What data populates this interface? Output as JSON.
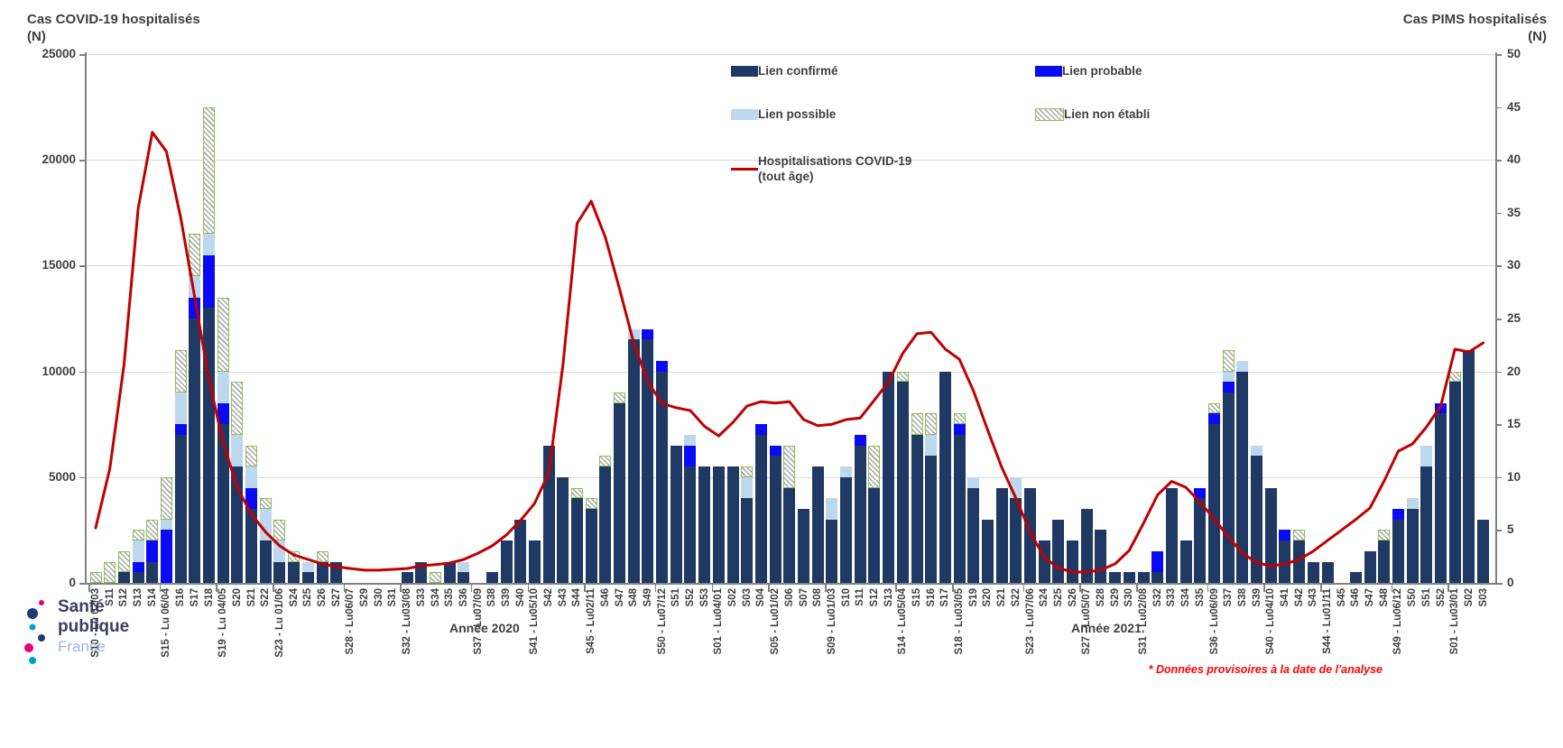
{
  "axes": {
    "left_title1": "Cas COVID-19 hospitalisés",
    "left_title2": "(N)",
    "right_title1": "Cas PIMS hospitalisés",
    "right_title2": "(N)"
  },
  "legend": {
    "confirmed": "Lien confirmé",
    "probable": "Lien probable",
    "possible": "Lien possible",
    "non_etabli": "Lien non établi",
    "covid_line1": "Hospitalisations COVID-19",
    "covid_line2": "(tout âge)"
  },
  "footer": {
    "year_2020": "Année 2020",
    "year_2021": "Année 2021",
    "provisional_note": "* Données provisoires à la date de l'analyse"
  },
  "logo": {
    "line1": "Santé",
    "line2": "publique",
    "line3": "France"
  },
  "colors": {
    "confirmed": "#1f3864",
    "probable": "#0a0af5",
    "possible": "#bdd7ee",
    "non_etabli_border": "#8cc04b",
    "covid_line": "#c00000",
    "gridline": "#d9d9d9",
    "axis": "#808080",
    "text": "#3f3f3f",
    "note": "#ff0000"
  },
  "chart_data": {
    "type": "bar",
    "subtype": "stacked-bars-with-line-combo",
    "title": "",
    "xlabel": "",
    "ylabel_left": "Cas COVID-19 hospitalisés (N)",
    "ylabel_right": "Cas PIMS hospitalisés (N)",
    "left_axis": {
      "min": 0,
      "max": 25000,
      "step": 5000,
      "applies_to": "covid_hosp line"
    },
    "right_axis": {
      "min": 0,
      "max": 50,
      "step": 5,
      "applies_to": "stacked PIMS bars"
    },
    "grid": "horizontal, every 5000 (left) / 10 (right)",
    "legend_position": "top-center",
    "series_names": [
      "Lien confirmé",
      "Lien probable",
      "Lien possible",
      "Lien non établi",
      "Hospitalisations COVID-19 (tout âge)"
    ],
    "weeks": [
      {
        "label": "S10 - Lu 02/03",
        "confirmed": 0,
        "probable": 0,
        "possible": 0,
        "non_etabli": 1,
        "covid_hosp": 2600
      },
      {
        "label": "S11",
        "confirmed": 0,
        "probable": 0,
        "possible": 0,
        "non_etabli": 2,
        "covid_hosp": 5400
      },
      {
        "label": "S12",
        "confirmed": 1,
        "probable": 0,
        "possible": 0,
        "non_etabli": 2,
        "covid_hosp": 10300
      },
      {
        "label": "S13",
        "confirmed": 1,
        "probable": 1,
        "possible": 2,
        "non_etabli": 1,
        "covid_hosp": 17700
      },
      {
        "label": "S14",
        "confirmed": 2,
        "probable": 2,
        "possible": 0,
        "non_etabli": 2,
        "covid_hosp": 21300
      },
      {
        "label": "S15 - Lu 06/04",
        "confirmed": 0,
        "probable": 5,
        "possible": 1,
        "non_etabli": 4,
        "covid_hosp": 20400
      },
      {
        "label": "S16",
        "confirmed": 14,
        "probable": 1,
        "possible": 3,
        "non_etabli": 4,
        "covid_hosp": 17300
      },
      {
        "label": "S17",
        "confirmed": 25,
        "probable": 2,
        "possible": 2,
        "non_etabli": 4,
        "covid_hosp": 13500
      },
      {
        "label": "S18",
        "confirmed": 26,
        "probable": 5,
        "possible": 2,
        "non_etabli": 12,
        "covid_hosp": 9600
      },
      {
        "label": "S19 - Lu 04/05",
        "confirmed": 15,
        "probable": 2,
        "possible": 3,
        "non_etabli": 7,
        "covid_hosp": 6650
      },
      {
        "label": "S20",
        "confirmed": 11,
        "probable": 0,
        "possible": 3,
        "non_etabli": 5,
        "covid_hosp": 4500
      },
      {
        "label": "S21",
        "confirmed": 7,
        "probable": 2,
        "possible": 2,
        "non_etabli": 2,
        "covid_hosp": 3250
      },
      {
        "label": "S22",
        "confirmed": 4,
        "probable": 0,
        "possible": 3,
        "non_etabli": 1,
        "covid_hosp": 2400
      },
      {
        "label": "S23 - Lu 01/06",
        "confirmed": 2,
        "probable": 0,
        "possible": 2,
        "non_etabli": 2,
        "covid_hosp": 1750
      },
      {
        "label": "S24",
        "confirmed": 2,
        "probable": 0,
        "possible": 0,
        "non_etabli": 1,
        "covid_hosp": 1320
      },
      {
        "label": "S25",
        "confirmed": 1,
        "probable": 0,
        "possible": 1,
        "non_etabli": 0,
        "covid_hosp": 1110
      },
      {
        "label": "S26",
        "confirmed": 2,
        "probable": 0,
        "possible": 0,
        "non_etabli": 1,
        "covid_hosp": 900
      },
      {
        "label": "S27",
        "confirmed": 2,
        "probable": 0,
        "possible": 0,
        "non_etabli": 0,
        "covid_hosp": 770
      },
      {
        "label": "S28 - Lu06/07",
        "confirmed": 0,
        "probable": 0,
        "possible": 0,
        "non_etabli": 0,
        "covid_hosp": 680
      },
      {
        "label": "S29",
        "confirmed": 0,
        "probable": 0,
        "possible": 0,
        "non_etabli": 0,
        "covid_hosp": 600
      },
      {
        "label": "S30",
        "confirmed": 0,
        "probable": 0,
        "possible": 0,
        "non_etabli": 0,
        "covid_hosp": 600
      },
      {
        "label": "S31",
        "confirmed": 0,
        "probable": 0,
        "possible": 0,
        "non_etabli": 0,
        "covid_hosp": 640
      },
      {
        "label": "S32 - Lu03/08",
        "confirmed": 1,
        "probable": 0,
        "possible": 0,
        "non_etabli": 0,
        "covid_hosp": 680
      },
      {
        "label": "S33",
        "confirmed": 2,
        "probable": 0,
        "possible": 0,
        "non_etabli": 0,
        "covid_hosp": 810
      },
      {
        "label": "S34",
        "confirmed": 0,
        "probable": 0,
        "possible": 0,
        "non_etabli": 1,
        "covid_hosp": 860
      },
      {
        "label": "S35",
        "confirmed": 2,
        "probable": 0,
        "possible": 0,
        "non_etabli": 0,
        "covid_hosp": 940
      },
      {
        "label": "S36",
        "confirmed": 1,
        "probable": 0,
        "possible": 1,
        "non_etabli": 0,
        "covid_hosp": 1110
      },
      {
        "label": "S37 - Lu07/09",
        "confirmed": 0,
        "probable": 0,
        "possible": 0,
        "non_etabli": 0,
        "covid_hosp": 1400
      },
      {
        "label": "S38",
        "confirmed": 1,
        "probable": 0,
        "possible": 0,
        "non_etabli": 0,
        "covid_hosp": 1750
      },
      {
        "label": "S39",
        "confirmed": 4,
        "probable": 0,
        "possible": 0,
        "non_etabli": 0,
        "covid_hosp": 2260
      },
      {
        "label": "S40",
        "confirmed": 6,
        "probable": 0,
        "possible": 0,
        "non_etabli": 0,
        "covid_hosp": 2950
      },
      {
        "label": "S41 - Lu05/10",
        "confirmed": 4,
        "probable": 0,
        "possible": 0,
        "non_etabli": 0,
        "covid_hosp": 3760
      },
      {
        "label": "S42",
        "confirmed": 13,
        "probable": 0,
        "possible": 0,
        "non_etabli": 0,
        "covid_hosp": 5200
      },
      {
        "label": "S43",
        "confirmed": 10,
        "probable": 0,
        "possible": 0,
        "non_etabli": 0,
        "covid_hosp": 10300
      },
      {
        "label": "S44",
        "confirmed": 8,
        "probable": 0,
        "possible": 0,
        "non_etabli": 1,
        "covid_hosp": 17000
      },
      {
        "label": "S45 - Lu02/11",
        "confirmed": 7,
        "probable": 0,
        "possible": 0,
        "non_etabli": 1,
        "covid_hosp": 18050
      },
      {
        "label": "S46",
        "confirmed": 11,
        "probable": 0,
        "possible": 0,
        "non_etabli": 1,
        "covid_hosp": 16340
      },
      {
        "label": "S47",
        "confirmed": 17,
        "probable": 0,
        "possible": 0,
        "non_etabli": 1,
        "covid_hosp": 13900
      },
      {
        "label": "S48",
        "confirmed": 23,
        "probable": 0,
        "possible": 1,
        "non_etabli": 0,
        "covid_hosp": 11350
      },
      {
        "label": "S49",
        "confirmed": 23,
        "probable": 1,
        "possible": 0,
        "non_etabli": 0,
        "covid_hosp": 9500
      },
      {
        "label": "S50 - Lu07/12",
        "confirmed": 20,
        "probable": 1,
        "possible": 0,
        "non_etabli": 0,
        "covid_hosp": 8490
      },
      {
        "label": "S51",
        "confirmed": 13,
        "probable": 0,
        "possible": 0,
        "non_etabli": 0,
        "covid_hosp": 8280
      },
      {
        "label": "S52",
        "confirmed": 11,
        "probable": 2,
        "possible": 1,
        "non_etabli": 0,
        "covid_hosp": 8150
      },
      {
        "label": "S53",
        "confirmed": 11,
        "probable": 0,
        "possible": 0,
        "non_etabli": 0,
        "covid_hosp": 7400
      },
      {
        "label": "S01 - Lu04/01",
        "confirmed": 11,
        "probable": 0,
        "possible": 0,
        "non_etabli": 0,
        "covid_hosp": 6950
      },
      {
        "label": "S02",
        "confirmed": 11,
        "probable": 0,
        "possible": 0,
        "non_etabli": 0,
        "covid_hosp": 7580
      },
      {
        "label": "S03",
        "confirmed": 8,
        "probable": 0,
        "possible": 2,
        "non_etabli": 1,
        "covid_hosp": 8360
      },
      {
        "label": "S04",
        "confirmed": 14,
        "probable": 1,
        "possible": 0,
        "non_etabli": 0,
        "covid_hosp": 8570
      },
      {
        "label": "S05 - Lu01/02",
        "confirmed": 12,
        "probable": 1,
        "possible": 0,
        "non_etabli": 0,
        "covid_hosp": 8500
      },
      {
        "label": "S06",
        "confirmed": 9,
        "probable": 0,
        "possible": 0,
        "non_etabli": 4,
        "covid_hosp": 8570
      },
      {
        "label": "S07",
        "confirmed": 7,
        "probable": 0,
        "possible": 0,
        "non_etabli": 0,
        "covid_hosp": 7720
      },
      {
        "label": "S08",
        "confirmed": 11,
        "probable": 0,
        "possible": 0,
        "non_etabli": 0,
        "covid_hosp": 7435
      },
      {
        "label": "S09 - Lu01/03",
        "confirmed": 6,
        "probable": 0,
        "possible": 2,
        "non_etabli": 0,
        "covid_hosp": 7500
      },
      {
        "label": "S10",
        "confirmed": 10,
        "probable": 0,
        "possible": 1,
        "non_etabli": 0,
        "covid_hosp": 7720
      },
      {
        "label": "S11",
        "confirmed": 13,
        "probable": 1,
        "possible": 0,
        "non_etabli": 0,
        "covid_hosp": 7800
      },
      {
        "label": "S12",
        "confirmed": 9,
        "probable": 0,
        "possible": 0,
        "non_etabli": 4,
        "covid_hosp": 8645
      },
      {
        "label": "S13",
        "confirmed": 20,
        "probable": 0,
        "possible": 0,
        "non_etabli": 0,
        "covid_hosp": 9500
      },
      {
        "label": "S14 - Lu05/04",
        "confirmed": 19,
        "probable": 0,
        "possible": 0,
        "non_etabli": 1,
        "covid_hosp": 10850
      },
      {
        "label": "S15",
        "confirmed": 14,
        "probable": 0,
        "possible": 0,
        "non_etabli": 2,
        "covid_hosp": 11780
      },
      {
        "label": "S16",
        "confirmed": 12,
        "probable": 0,
        "possible": 2,
        "non_etabli": 2,
        "covid_hosp": 11850
      },
      {
        "label": "S17",
        "confirmed": 20,
        "probable": 0,
        "possible": 0,
        "non_etabli": 0,
        "covid_hosp": 11060
      },
      {
        "label": "S18 - Lu03/05",
        "confirmed": 14,
        "probable": 1,
        "possible": 0,
        "non_etabli": 1,
        "covid_hosp": 10570
      },
      {
        "label": "S19",
        "confirmed": 9,
        "probable": 0,
        "possible": 1,
        "non_etabli": 0,
        "covid_hosp": 9070
      },
      {
        "label": "S20",
        "confirmed": 6,
        "probable": 0,
        "possible": 0,
        "non_etabli": 0,
        "covid_hosp": 7220
      },
      {
        "label": "S21",
        "confirmed": 9,
        "probable": 0,
        "possible": 0,
        "non_etabli": 0,
        "covid_hosp": 5450
      },
      {
        "label": "S22",
        "confirmed": 8,
        "probable": 0,
        "possible": 2,
        "non_etabli": 0,
        "covid_hosp": 4000
      },
      {
        "label": "S23 - Lu07/06",
        "confirmed": 9,
        "probable": 0,
        "possible": 0,
        "non_etabli": 0,
        "covid_hosp": 2400
      },
      {
        "label": "S24",
        "confirmed": 4,
        "probable": 0,
        "possible": 0,
        "non_etabli": 0,
        "covid_hosp": 1200
      },
      {
        "label": "S25",
        "confirmed": 6,
        "probable": 0,
        "possible": 0,
        "non_etabli": 0,
        "covid_hosp": 700
      },
      {
        "label": "S26",
        "confirmed": 4,
        "probable": 0,
        "possible": 0,
        "non_etabli": 0,
        "covid_hosp": 510
      },
      {
        "label": "S27 - Lu05/07",
        "confirmed": 7,
        "probable": 0,
        "possible": 0,
        "non_etabli": 0,
        "covid_hosp": 510
      },
      {
        "label": "S28",
        "confirmed": 5,
        "probable": 0,
        "possible": 0,
        "non_etabli": 0,
        "covid_hosp": 610
      },
      {
        "label": "S29",
        "confirmed": 1,
        "probable": 0,
        "possible": 0,
        "non_etabli": 0,
        "covid_hosp": 900
      },
      {
        "label": "S30",
        "confirmed": 1,
        "probable": 0,
        "possible": 0,
        "non_etabli": 0,
        "covid_hosp": 1535
      },
      {
        "label": "S31 - Lu02/08",
        "confirmed": 1,
        "probable": 0,
        "possible": 0,
        "non_etabli": 0,
        "covid_hosp": 2815
      },
      {
        "label": "S32",
        "confirmed": 1,
        "probable": 2,
        "possible": 0,
        "non_etabli": 0,
        "covid_hosp": 4165
      },
      {
        "label": "S33",
        "confirmed": 9,
        "probable": 0,
        "possible": 0,
        "non_etabli": 0,
        "covid_hosp": 4800
      },
      {
        "label": "S34",
        "confirmed": 4,
        "probable": 0,
        "possible": 0,
        "non_etabli": 0,
        "covid_hosp": 4520
      },
      {
        "label": "S35",
        "confirmed": 8,
        "probable": 1,
        "possible": 0,
        "non_etabli": 0,
        "covid_hosp": 3810
      },
      {
        "label": "S36 - Lu06/09",
        "confirmed": 15,
        "probable": 1,
        "possible": 0,
        "non_etabli": 1,
        "covid_hosp": 3030
      },
      {
        "label": "S37",
        "confirmed": 18,
        "probable": 1,
        "possible": 1,
        "non_etabli": 2,
        "covid_hosp": 2175
      },
      {
        "label": "S38",
        "confirmed": 20,
        "probable": 0,
        "possible": 1,
        "non_etabli": 0,
        "covid_hosp": 1390
      },
      {
        "label": "S39",
        "confirmed": 12,
        "probable": 0,
        "possible": 1,
        "non_etabli": 0,
        "covid_hosp": 965
      },
      {
        "label": "S40 - Lu04/10",
        "confirmed": 9,
        "probable": 0,
        "possible": 0,
        "non_etabli": 0,
        "covid_hosp": 795
      },
      {
        "label": "S41",
        "confirmed": 4,
        "probable": 1,
        "possible": 0,
        "non_etabli": 0,
        "covid_hosp": 900
      },
      {
        "label": "S42",
        "confirmed": 4,
        "probable": 0,
        "possible": 0,
        "non_etabli": 1,
        "covid_hosp": 1100
      },
      {
        "label": "S43",
        "confirmed": 2,
        "probable": 0,
        "possible": 0,
        "non_etabli": 0,
        "covid_hosp": 1500
      },
      {
        "label": "S44 - Lu01/11",
        "confirmed": 2,
        "probable": 0,
        "possible": 0,
        "non_etabli": 0,
        "covid_hosp": 2000
      },
      {
        "label": "S45",
        "confirmed": 0,
        "probable": 0,
        "possible": 0,
        "non_etabli": 0,
        "covid_hosp": 2500
      },
      {
        "label": "S46",
        "confirmed": 1,
        "probable": 0,
        "possible": 0,
        "non_etabli": 0,
        "covid_hosp": 3000
      },
      {
        "label": "S47",
        "confirmed": 3,
        "probable": 0,
        "possible": 0,
        "non_etabli": 0,
        "covid_hosp": 3540
      },
      {
        "label": "S48",
        "confirmed": 4,
        "probable": 0,
        "possible": 0,
        "non_etabli": 1,
        "covid_hosp": 4820
      },
      {
        "label": "S49 - Lu06/12",
        "confirmed": 6,
        "probable": 1,
        "possible": 0,
        "non_etabli": 0,
        "covid_hosp": 6230
      },
      {
        "label": "S50",
        "confirmed": 7,
        "probable": 0,
        "possible": 1,
        "non_etabli": 0,
        "covid_hosp": 6570
      },
      {
        "label": "S51",
        "confirmed": 11,
        "probable": 0,
        "possible": 2,
        "non_etabli": 0,
        "covid_hosp": 7380
      },
      {
        "label": "S52",
        "confirmed": 16,
        "probable": 1,
        "possible": 0,
        "non_etabli": 0,
        "covid_hosp": 8360
      },
      {
        "label": "S01 - Lu03/01",
        "confirmed": 19,
        "probable": 0,
        "possible": 0,
        "non_etabli": 1,
        "covid_hosp": 11050
      },
      {
        "label": "S02",
        "confirmed": 22,
        "probable": 0,
        "possible": 0,
        "non_etabli": 0,
        "covid_hosp": 10920
      },
      {
        "label": "S03",
        "confirmed": 6,
        "probable": 0,
        "possible": 0,
        "non_etabli": 0,
        "covid_hosp": 11350
      }
    ]
  }
}
